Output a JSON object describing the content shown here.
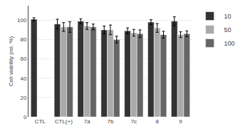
{
  "chart_data": {
    "type": "bar",
    "categories": [
      "CTL",
      "CTL(+)",
      "7a",
      "7b",
      "7c",
      "8",
      "9"
    ],
    "series": [
      {
        "name": "10",
        "color": "#333333",
        "values": [
          101,
          96,
          99,
          90,
          89,
          98,
          99
        ],
        "errors": [
          1.5,
          5.0,
          2.5,
          4.0,
          3.0,
          2.5,
          4.5
        ]
      },
      {
        "name": "50",
        "color": "#aaaaaa",
        "values": [
          null,
          93,
          94,
          90,
          87,
          92,
          85
        ],
        "errors": [
          null,
          4.5,
          3.5,
          5.0,
          3.5,
          4.5,
          3.0
        ]
      },
      {
        "name": "100",
        "color": "#666666",
        "values": [
          null,
          93,
          93,
          80,
          86,
          85,
          86
        ],
        "errors": [
          null,
          5.5,
          3.0,
          3.5,
          4.0,
          3.5,
          3.0
        ]
      }
    ],
    "ylabel": "Cell viability (rel. %)",
    "ylim": [
      0,
      115
    ],
    "yticks": [
      0,
      20,
      40,
      60,
      80,
      100
    ],
    "grid": true,
    "legend": "right"
  }
}
